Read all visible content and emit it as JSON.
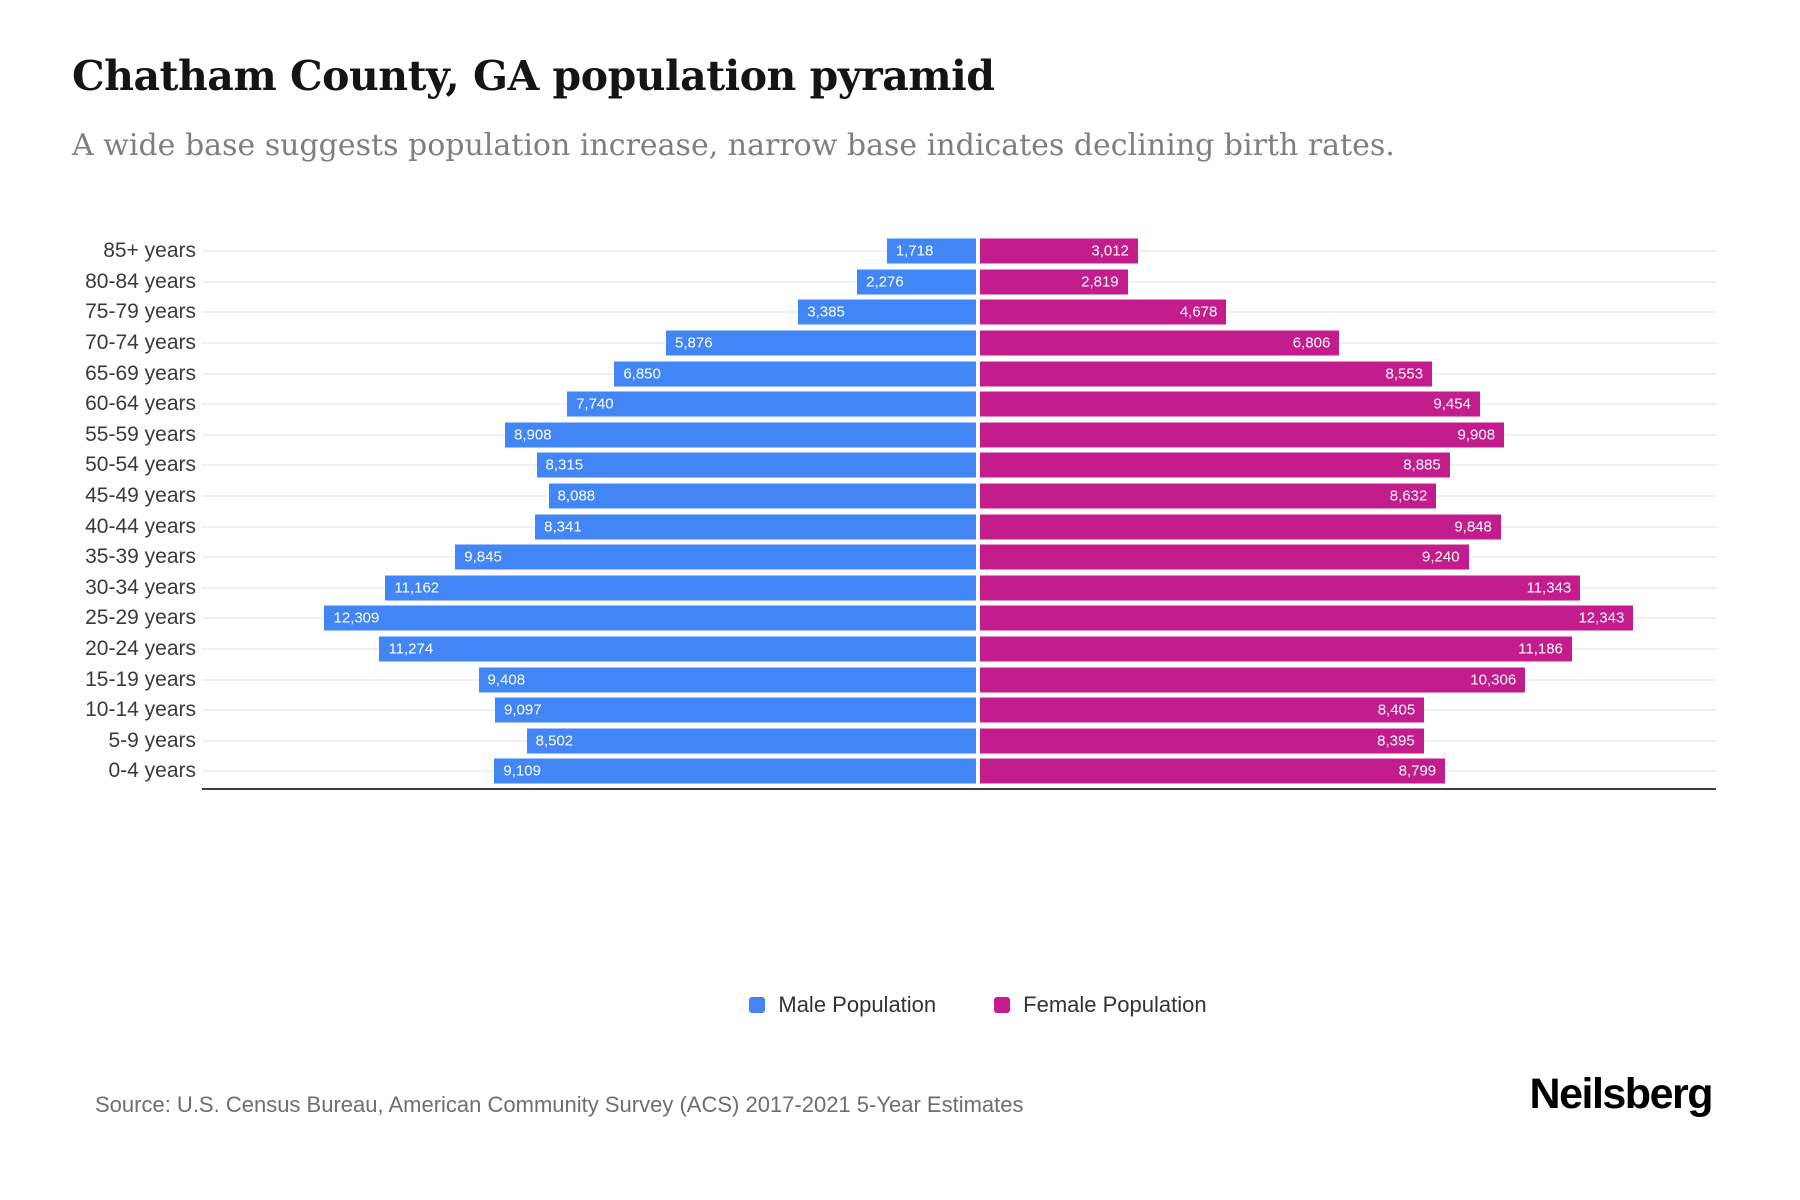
{
  "header": {
    "title": "Chatham County, GA population pyramid",
    "subtitle": "A wide base suggests population increase, narrow base indicates declining birth rates."
  },
  "chart_data": {
    "type": "bar",
    "variant": "population-pyramid",
    "title": "Chatham County, GA population pyramid",
    "subtitle": "A wide base suggests population increase, narrow base indicates declining birth rates.",
    "categories": [
      "85+ years",
      "80-84 years",
      "75-79 years",
      "70-74 years",
      "65-69 years",
      "60-64 years",
      "55-59 years",
      "50-54 years",
      "45-49 years",
      "40-44 years",
      "35-39 years",
      "30-34 years",
      "25-29 years",
      "20-24 years",
      "15-19 years",
      "10-14 years",
      "5-9 years",
      "0-4 years"
    ],
    "series": [
      {
        "name": "Male Population",
        "side": "left",
        "color": "#4285F4",
        "values": [
          1718,
          2276,
          3385,
          5876,
          6850,
          7740,
          8908,
          8315,
          8088,
          8341,
          9845,
          11162,
          12309,
          11274,
          9408,
          9097,
          8502,
          9109
        ]
      },
      {
        "name": "Female Population",
        "side": "right",
        "color": "#C31C8C",
        "values": [
          3012,
          2819,
          4678,
          6806,
          8553,
          9454,
          9908,
          8885,
          8632,
          9848,
          9240,
          11343,
          12343,
          11186,
          10306,
          8405,
          8395,
          8799
        ]
      }
    ],
    "xlim_per_side": [
      0,
      13900
    ],
    "value_labels": "inside-ends, white, thousands-comma",
    "grid": "horizontal-light",
    "legend_position": "bottom-center"
  },
  "legend": {
    "items": [
      {
        "label": "Male Population",
        "color": "#4285F4"
      },
      {
        "label": "Female Population",
        "color": "#C31C8C"
      }
    ]
  },
  "footer": {
    "source": "Source: U.S. Census Bureau, American Community Survey (ACS) 2017-2021 5-Year Estimates",
    "brand": "Neilsberg"
  }
}
